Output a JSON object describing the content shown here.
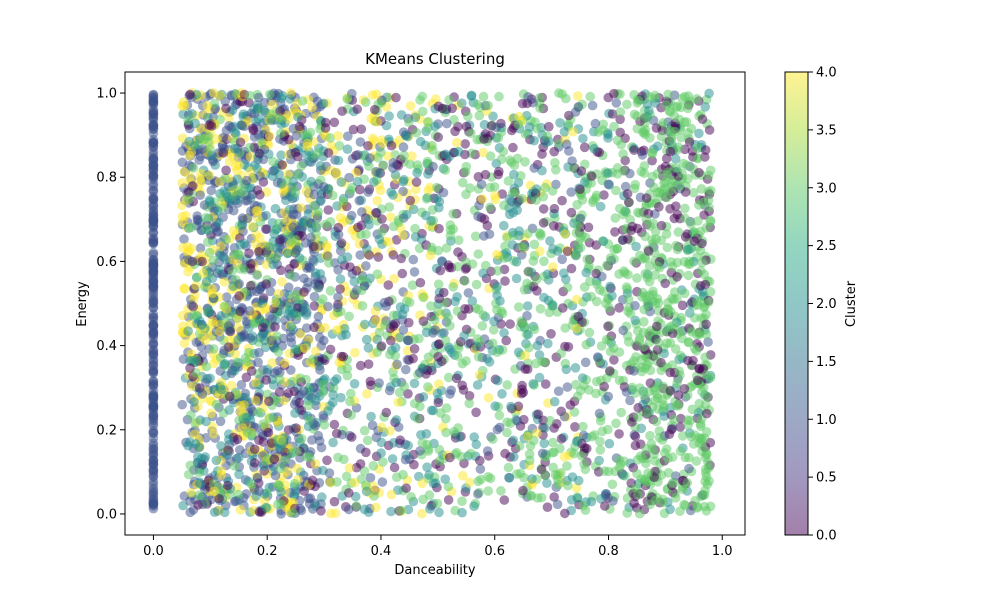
{
  "chart_data": {
    "type": "scatter",
    "title": "KMeans Clustering",
    "xlabel": "Danceability",
    "ylabel": "Energy",
    "xlim": [
      -0.05,
      1.04
    ],
    "ylim": [
      -0.05,
      1.05
    ],
    "xticks": [
      0.0,
      0.2,
      0.4,
      0.6,
      0.8,
      1.0
    ],
    "xtick_labels": [
      "0.0",
      "0.2",
      "0.4",
      "0.6",
      "0.8",
      "1.0"
    ],
    "yticks": [
      0.0,
      0.2,
      0.4,
      0.6,
      0.8,
      1.0
    ],
    "ytick_labels": [
      "0.0",
      "0.2",
      "0.4",
      "0.6",
      "0.8",
      "1.0"
    ],
    "grid": false,
    "colormap": "viridis",
    "marker_alpha": 0.5,
    "colorbar": {
      "label": "Cluster",
      "range": [
        0.0,
        4.0
      ],
      "ticks": [
        0.0,
        0.5,
        1.0,
        1.5,
        2.0,
        2.5,
        3.0,
        3.5,
        4.0
      ],
      "tick_labels": [
        "0.0",
        "0.5",
        "1.0",
        "1.5",
        "2.0",
        "2.5",
        "3.0",
        "3.5",
        "4.0"
      ]
    },
    "clusters": [
      {
        "id": 0,
        "color": "#440154",
        "danceability_range": [
          0.1,
          0.98
        ],
        "energy_range": [
          0.0,
          1.0
        ],
        "note_density": "scattered, denser at high danceability"
      },
      {
        "id": 1,
        "color": "#3b528b",
        "danceability_range": [
          0.0,
          0.0
        ],
        "energy_range": [
          0.0,
          1.0
        ],
        "also_band": [
          0.05,
          0.3
        ]
      },
      {
        "id": 2,
        "color": "#21908d",
        "danceability_range": [
          0.06,
          0.95
        ],
        "energy_range": [
          0.0,
          1.0
        ]
      },
      {
        "id": 3,
        "color": "#5dc963",
        "danceability_range": [
          0.1,
          0.99
        ],
        "energy_range": [
          0.0,
          1.0
        ],
        "note_density": "dominant at high danceability"
      },
      {
        "id": 4,
        "color": "#fde725",
        "danceability_range": [
          0.05,
          0.65
        ],
        "energy_range": [
          0.0,
          1.0
        ],
        "note_density": "concentrated at low danceability, high energy"
      }
    ]
  }
}
